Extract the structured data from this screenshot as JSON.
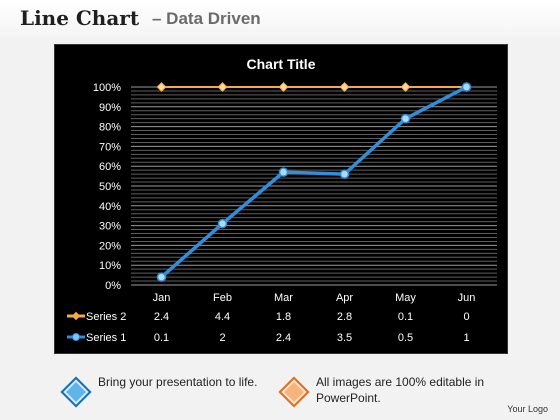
{
  "header": {
    "title": "Line Chart",
    "subtitle": "– Data Driven"
  },
  "chart_data": {
    "type": "line",
    "title": "Chart Title",
    "categories": [
      "Jan",
      "Feb",
      "Mar",
      "Apr",
      "May",
      "Jun"
    ],
    "y_ticks": [
      "0%",
      "10%",
      "20%",
      "30%",
      "40%",
      "50%",
      "60%",
      "70%",
      "80%",
      "90%",
      "100%"
    ],
    "ylim": [
      0,
      100
    ],
    "grid": true,
    "plotted_percent": {
      "Series 1": [
        4,
        31,
        57,
        56,
        84,
        100
      ],
      "Series 2": [
        100,
        100,
        100,
        100,
        100,
        100
      ]
    },
    "series": [
      {
        "name": "Series 2",
        "values": [
          "2.4",
          "4.4",
          "1.8",
          "2.8",
          "0.1",
          "0"
        ],
        "color": "#f5a947"
      },
      {
        "name": "Series 1",
        "values": [
          "0.1",
          "2",
          "2.4",
          "3.5",
          "0.5",
          "1"
        ],
        "color": "#2f8fdc"
      }
    ]
  },
  "callouts": [
    {
      "text": "Bring your presentation to life."
    },
    {
      "text": "All images are 100% editable in PowerPoint."
    }
  ],
  "footer": {
    "logo": "Your Logo"
  }
}
